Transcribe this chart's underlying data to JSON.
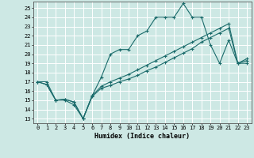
{
  "xlabel": "Humidex (Indice chaleur)",
  "bg_color": "#cde8e4",
  "grid_color": "#ffffff",
  "line_color": "#1a6b6b",
  "xlim": [
    -0.5,
    23.5
  ],
  "ylim": [
    12.5,
    25.7
  ],
  "xticks": [
    0,
    1,
    2,
    3,
    4,
    5,
    6,
    7,
    8,
    9,
    10,
    11,
    12,
    13,
    14,
    15,
    16,
    17,
    18,
    19,
    20,
    21,
    22,
    23
  ],
  "yticks": [
    13,
    14,
    15,
    16,
    17,
    18,
    19,
    20,
    21,
    22,
    23,
    24,
    25
  ],
  "line1_x": [
    0,
    1,
    2,
    3,
    4,
    5,
    6,
    7,
    8,
    9,
    10,
    11,
    12,
    13,
    14,
    15,
    16,
    17,
    18,
    19,
    20,
    21,
    22,
    23
  ],
  "line1_y": [
    17,
    17,
    15,
    15,
    14.5,
    13,
    15.5,
    17.5,
    20,
    20.5,
    20.5,
    22,
    22.5,
    24,
    24,
    24,
    25.5,
    24,
    24,
    21,
    19,
    21.5,
    19,
    19
  ],
  "line2_x": [
    0,
    1,
    2,
    3,
    4,
    5,
    6,
    7,
    8,
    9,
    10,
    11,
    12,
    13,
    14,
    15,
    16,
    17,
    18,
    19,
    20,
    21,
    22,
    23
  ],
  "line2_y": [
    17,
    16.7,
    15,
    15.1,
    14.8,
    13.0,
    15.5,
    16.5,
    17.0,
    17.4,
    17.8,
    18.3,
    18.8,
    19.3,
    19.8,
    20.3,
    20.8,
    21.3,
    21.8,
    22.3,
    22.8,
    23.3,
    19.0,
    19.5
  ],
  "line3_x": [
    0,
    1,
    2,
    3,
    4,
    5,
    6,
    7,
    8,
    9,
    10,
    11,
    12,
    13,
    14,
    15,
    16,
    17,
    18,
    19,
    20,
    21,
    22,
    23
  ],
  "line3_y": [
    17,
    16.7,
    15,
    15.1,
    14.8,
    13.0,
    15.4,
    16.3,
    16.6,
    17.0,
    17.3,
    17.7,
    18.2,
    18.6,
    19.1,
    19.6,
    20.1,
    20.6,
    21.3,
    21.8,
    22.3,
    22.8,
    19.0,
    19.3
  ]
}
